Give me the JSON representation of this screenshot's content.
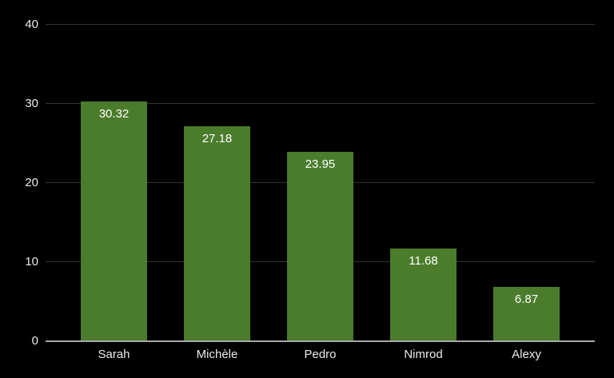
{
  "chart_data": {
    "type": "bar",
    "categories": [
      "Sarah",
      "Michèle",
      "Pedro",
      "Nimrod",
      "Alexy"
    ],
    "values": [
      30.32,
      27.18,
      23.95,
      11.68,
      6.87
    ],
    "value_labels": [
      "30.32",
      "27.18",
      "23.95",
      "11.68",
      "6.87"
    ],
    "title": "",
    "xlabel": "",
    "ylabel": "",
    "ylim": [
      0,
      40
    ],
    "yticks": [
      0,
      10,
      20,
      30,
      40
    ],
    "grid": "horizontal",
    "legend": "none",
    "colors": {
      "background": "#000000",
      "bar_fill": "#4a7c2c",
      "gridline": "#333333",
      "axis_line": "#a8a8a8",
      "tick_label_text": "#ececec",
      "bar_value_text": "#ffffff"
    }
  }
}
